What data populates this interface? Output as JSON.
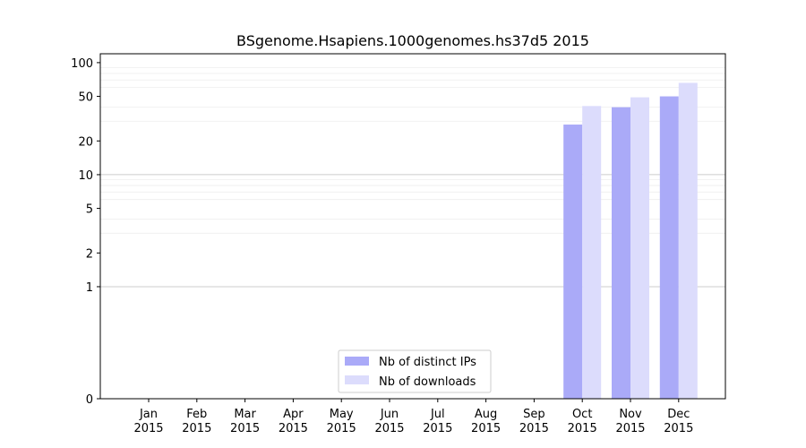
{
  "chart_data": {
    "type": "bar",
    "title": "BSgenome.Hsapiens.1000genomes.hs37d5 2015",
    "xlabel": "",
    "ylabel": "",
    "yscale": "symlog",
    "ylim": [
      0,
      120
    ],
    "yticks": [
      0,
      1,
      2,
      5,
      10,
      20,
      50,
      100
    ],
    "categories": [
      "Jan\n2015",
      "Feb\n2015",
      "Mar\n2015",
      "Apr\n2015",
      "May\n2015",
      "Jun\n2015",
      "Jul\n2015",
      "Aug\n2015",
      "Sep\n2015",
      "Oct\n2015",
      "Nov\n2015",
      "Dec\n2015"
    ],
    "series": [
      {
        "name": "Nb of distinct IPs",
        "color": "#aaaaf8",
        "values": [
          0,
          0,
          0,
          0,
          0,
          0,
          0,
          0,
          0,
          28,
          40,
          50
        ]
      },
      {
        "name": "Nb of downloads",
        "color": "#dcdcfc",
        "values": [
          0,
          0,
          0,
          0,
          0,
          0,
          0,
          0,
          0,
          41,
          49,
          66
        ]
      }
    ],
    "grid": true,
    "legend_position": "bottom-center"
  }
}
